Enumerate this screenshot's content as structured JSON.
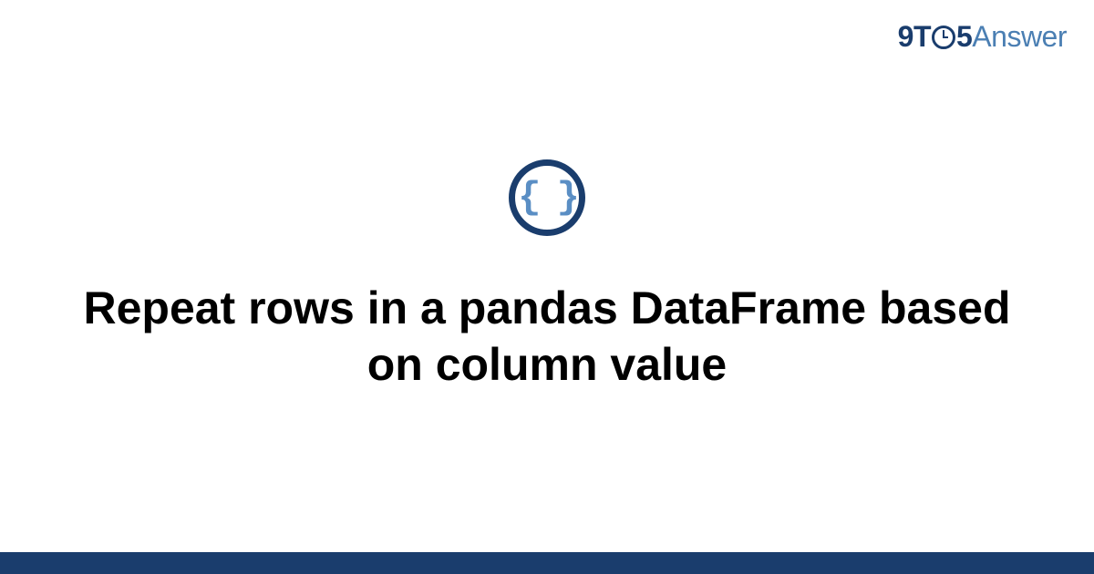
{
  "logo": {
    "part1": "9T",
    "part2": "5",
    "part3": "Answer",
    "colors": {
      "dark": "#1a3d6d",
      "light": "#4b7fb3"
    }
  },
  "icon": {
    "type": "code-braces",
    "glyph": "{ }",
    "border_color": "#1a3d6d",
    "glyph_color": "#5a8ec4"
  },
  "title": "Repeat rows in a pandas DataFrame based on column value",
  "styling": {
    "background_color": "#ffffff",
    "title_color": "#000000",
    "title_fontsize": 50,
    "title_fontweight": "bold",
    "bottom_bar_color": "#1a3d6d",
    "bottom_bar_height": 24
  }
}
